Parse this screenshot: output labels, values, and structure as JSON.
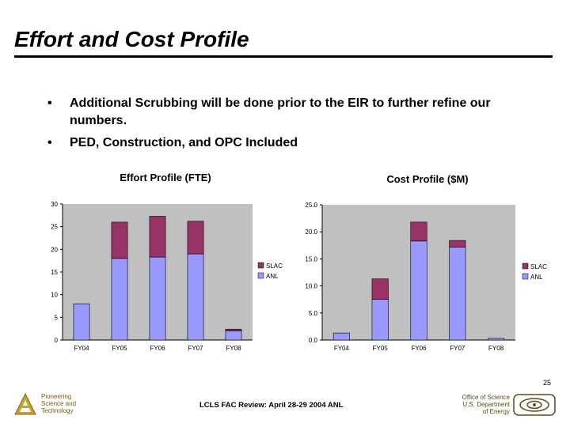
{
  "slide": {
    "title": "Effort and Cost Profile",
    "bullets": [
      "Additional Scrubbing will be done prior to the EIR to further refine our numbers.",
      "PED, Construction, and OPC Included"
    ],
    "bullet_glyph": "•",
    "page_number": "25"
  },
  "footer": {
    "org_lines": [
      "Pioneering",
      "Science and",
      "Technology"
    ],
    "center_text": "LCLS FAC Review: April 28-29 2004 ANL",
    "doe_lines": [
      "Office of Science",
      "U.S. Department",
      "of Energy"
    ],
    "logo_icon": "argonne-logo-icon",
    "doe_icon": "doe-office-of-science-icon"
  },
  "colors": {
    "slac": "#993366",
    "anl": "#9999ff",
    "plot_bg": "#c0c0c0",
    "bar_edge": "#000000",
    "org_text": "#7a5a1a"
  },
  "chart_data": [
    {
      "type": "bar",
      "stacked": true,
      "title": "Effort Profile (FTE)",
      "categories": [
        "FY04",
        "FY05",
        "FY06",
        "FY07",
        "FY08"
      ],
      "series": [
        {
          "name": "ANL",
          "values": [
            8,
            18,
            18.3,
            19,
            2
          ]
        },
        {
          "name": "SLAC",
          "values": [
            0,
            8,
            9,
            7.2,
            0.4
          ]
        }
      ],
      "ylim": [
        0,
        30
      ],
      "yticks": [
        "0",
        "5",
        "10",
        "15",
        "20",
        "25",
        "30"
      ],
      "legend": [
        "SLAC",
        "ANL"
      ],
      "legend_position": "right",
      "grid": false
    },
    {
      "type": "bar",
      "stacked": true,
      "title": "Cost Profile ($M)",
      "categories": [
        "FY04",
        "FY05",
        "FY06",
        "FY07",
        "FY08"
      ],
      "series": [
        {
          "name": "ANL",
          "values": [
            1.3,
            7.5,
            18.3,
            17.2,
            0.3
          ]
        },
        {
          "name": "SLAC",
          "values": [
            0,
            3.8,
            3.5,
            1.2,
            0
          ]
        }
      ],
      "ylim": [
        0,
        25
      ],
      "yticks": [
        "0.0",
        "5.0",
        "10.0",
        "15.0",
        "20.0",
        "25.0"
      ],
      "legend": [
        "SLAC",
        "ANL"
      ],
      "legend_position": "right",
      "grid": false
    }
  ]
}
